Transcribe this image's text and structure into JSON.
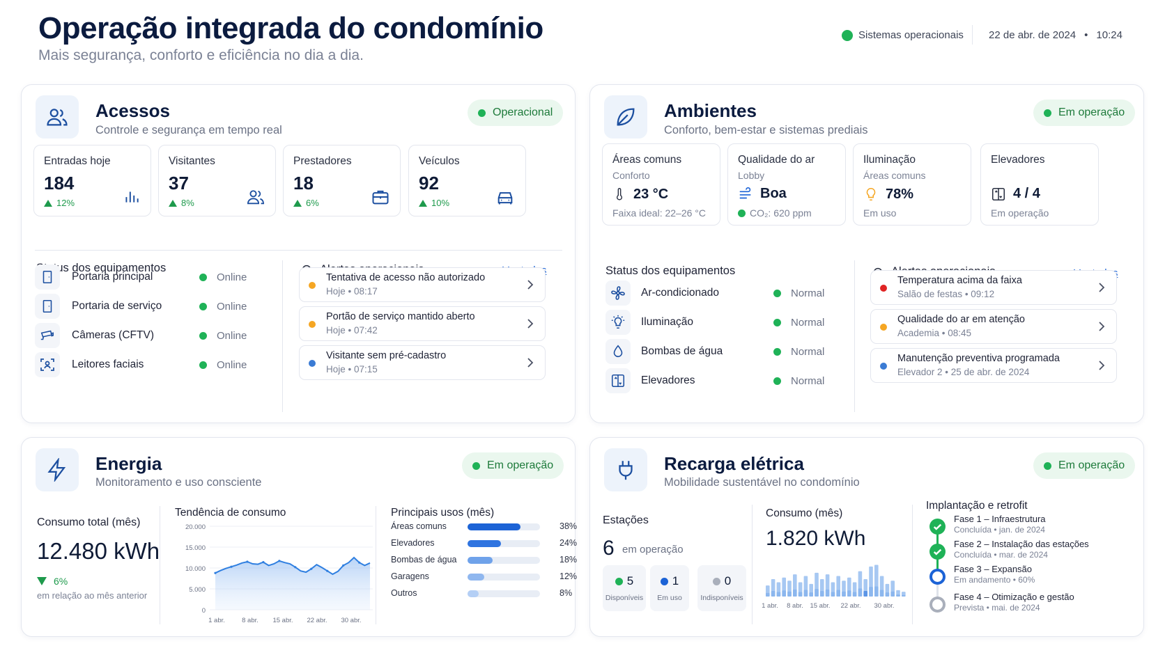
{
  "header": {
    "title": "Operação integrada do condomínio",
    "subtitle": "Mais segurança, conforto e eficiência no dia a dia.",
    "system_status": "Sistemas operacionais",
    "date": "22 de abr. de 2024",
    "time": "10:24",
    "sep": "•"
  },
  "acessos": {
    "title": "Acessos",
    "subtitle": "Controle e segurança em tempo real",
    "status": "Operacional",
    "metrics": [
      {
        "label": "Entradas hoje",
        "value": "184",
        "delta": "12%",
        "icon": "bar-chart-icon"
      },
      {
        "label": "Visitantes",
        "value": "37",
        "delta": "8%",
        "icon": "users-icon"
      },
      {
        "label": "Prestadores",
        "value": "18",
        "delta": "6%",
        "icon": "briefcase-icon"
      },
      {
        "label": "Veículos",
        "value": "92",
        "delta": "10%",
        "icon": "car-icon"
      }
    ],
    "equip_title": "Status dos equipamentos",
    "equipment": [
      {
        "name": "Portaria principal",
        "status": "Online",
        "icon": "door-icon"
      },
      {
        "name": "Portaria de serviço",
        "status": "Online",
        "icon": "door-icon"
      },
      {
        "name": "Câmeras (CFTV)",
        "status": "Online",
        "icon": "camera-icon"
      },
      {
        "name": "Leitores faciais",
        "status": "Online",
        "icon": "face-scan-icon"
      }
    ],
    "alerts_title": "Alertas operacionais",
    "see_all": "Ver todos",
    "alerts": [
      {
        "title": "Tentativa de acesso não autorizado",
        "meta": "Hoje • 08:17",
        "color": "#f5a623"
      },
      {
        "title": "Portão de serviço mantido aberto",
        "meta": "Hoje • 07:42",
        "color": "#f5a623"
      },
      {
        "title": "Visitante sem pré-cadastro",
        "meta": "Hoje • 07:15",
        "color": "#3b7bd4"
      }
    ]
  },
  "ambientes": {
    "title": "Ambientes",
    "subtitle": "Conforto, bem-estar e sistemas prediais",
    "status": "Em operação",
    "metrics": [
      {
        "label": "Áreas comuns",
        "sub": "Conforto",
        "value": "23 °C",
        "foot": "Faixa ideal: 22–26 °C",
        "icon": "thermometer-icon"
      },
      {
        "label": "Qualidade do ar",
        "sub": "Lobby",
        "value": "Boa",
        "foot": "CO₂: 620 ppm",
        "icon": "wind-icon"
      },
      {
        "label": "Iluminação",
        "sub": "Áreas comuns",
        "value": "78%",
        "foot": "Em uso",
        "icon": "bulb-icon"
      },
      {
        "label": "Elevadores",
        "sub": "",
        "value": "4 / 4",
        "foot": "Em operação",
        "icon": "elevator-icon"
      }
    ],
    "equip_title": "Status dos equipamentos",
    "equipment": [
      {
        "name": "Ar-condicionado",
        "status": "Normal",
        "icon": "fan-icon"
      },
      {
        "name": "Iluminação",
        "status": "Normal",
        "icon": "bulb-icon"
      },
      {
        "name": "Bombas de água",
        "status": "Normal",
        "icon": "drop-icon"
      },
      {
        "name": "Elevadores",
        "status": "Normal",
        "icon": "elevator-icon"
      }
    ],
    "alerts_title": "Alertas operacionais",
    "see_all": "Ver todos",
    "alerts": [
      {
        "title": "Temperatura acima da faixa",
        "meta": "Salão de festas • 09:12",
        "color": "#e02424"
      },
      {
        "title": "Qualidade do ar em atenção",
        "meta": "Academia • 08:45",
        "color": "#f5a623"
      },
      {
        "title": "Manutenção preventiva programada",
        "meta": "Elevador 2 • 25 de abr. de 2024",
        "color": "#3b7bd4"
      }
    ]
  },
  "energia": {
    "title": "Energia",
    "subtitle": "Monitoramento e uso consciente",
    "status": "Em operação",
    "total_label": "Consumo total (mês)",
    "total_value": "12.480 kWh",
    "delta": "6%",
    "delta_note": "em relação ao mês anterior",
    "trend_title": "Tendência de consumo",
    "uses_title": "Principais usos (mês)",
    "uses": [
      {
        "name": "Áreas comuns",
        "pct": "38%",
        "value": 38
      },
      {
        "name": "Elevadores",
        "pct": "24%",
        "value": 24
      },
      {
        "name": "Bombas de água",
        "pct": "18%",
        "value": 18
      },
      {
        "name": "Garagens",
        "pct": "12%",
        "value": 12
      },
      {
        "name": "Outros",
        "pct": "8%",
        "value": 8
      }
    ]
  },
  "recarga": {
    "title": "Recarga elétrica",
    "subtitle": "Mobilidade sustentável no condomínio",
    "status": "Em operação",
    "stations_label": "Estações",
    "stations_value": "6",
    "stations_note": "em operação",
    "stations": [
      {
        "count": "5",
        "label": "Disponíveis",
        "color": "#1fb257"
      },
      {
        "count": "1",
        "label": "Em uso",
        "color": "#1c63d6"
      },
      {
        "count": "0",
        "label": "Indisponíveis",
        "color": "#a9afbb"
      }
    ],
    "consumo_label": "Consumo (mês)",
    "consumo_value": "1.820 kWh",
    "roadmap_title": "Implantação e retrofit",
    "phases": [
      {
        "title": "Fase 1 – Infraestrutura",
        "meta": "Concluída • jan. de 2024",
        "state": "done"
      },
      {
        "title": "Fase 2 – Instalação das estações",
        "meta": "Concluída • mar. de 2024",
        "state": "done"
      },
      {
        "title": "Fase 3 – Expansão",
        "meta": "Em andamento • 60%",
        "state": "active"
      },
      {
        "title": "Fase 4 – Otimização e gestão",
        "meta": "Prevista • mai. de 2024",
        "state": "planned"
      }
    ]
  },
  "chart_data": [
    {
      "type": "area",
      "title": "Tendência de consumo",
      "x": [
        "1 abr.",
        "",
        "",
        "",
        "",
        "",
        "",
        "8 abr.",
        "",
        "",
        "",
        "",
        "",
        "",
        "15 abr.",
        "",
        "",
        "",
        "",
        "",
        "",
        "22 abr.",
        "",
        "",
        "",
        "",
        "",
        "",
        "",
        "30 abr."
      ],
      "xticks": [
        "1 abr.",
        "8 abr.",
        "15 abr.",
        "22 abr.",
        "30 abr."
      ],
      "yticks": [
        "20.000",
        "15.000",
        "10.000",
        "5.000",
        "0"
      ],
      "ylim": [
        0,
        20000
      ],
      "values": [
        8800,
        9400,
        9900,
        10300,
        10700,
        11200,
        11500,
        11000,
        10900,
        11400,
        10600,
        11000,
        11700,
        11300,
        11000,
        10200,
        9300,
        9000,
        9800,
        10800,
        10100,
        9300,
        8500,
        9200,
        10600,
        11300,
        12500,
        11300,
        10600,
        11200
      ]
    },
    {
      "type": "bar",
      "title": "Consumo (mês)",
      "xticks": [
        "1 abr.",
        "8 abr.",
        "15 abr.",
        "22 abr.",
        "30 abr."
      ],
      "values": [
        35,
        55,
        45,
        60,
        50,
        70,
        45,
        65,
        40,
        75,
        55,
        70,
        45,
        65,
        50,
        60,
        45,
        80,
        55,
        95,
        100,
        65,
        40,
        50,
        20,
        15
      ],
      "ylim": [
        0,
        110
      ]
    }
  ]
}
